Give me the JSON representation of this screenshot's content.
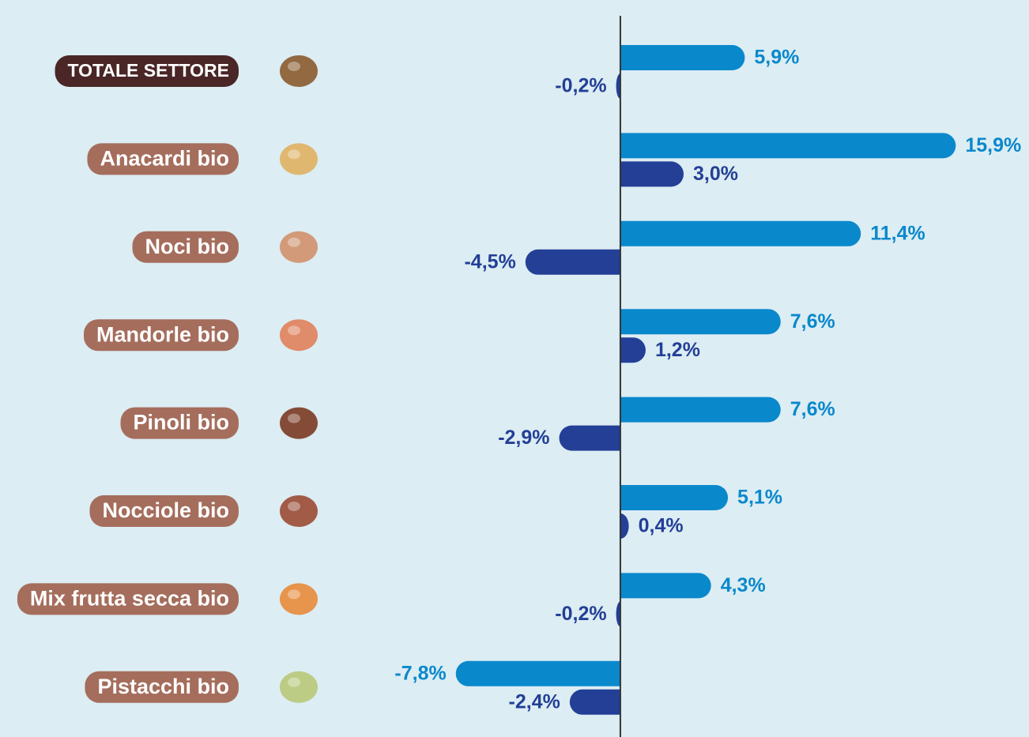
{
  "chart_data": {
    "type": "hbar",
    "categories": [
      "TOTALE SETTORE",
      "Anacardi bio",
      "Noci bio",
      "Mandorle bio",
      "Pinoli bio",
      "Nocciole bio",
      "Mix frutta secca bio",
      "Pistacchi bio"
    ],
    "series": [
      {
        "color": "#0a88cc",
        "values": [
          5.9,
          15.9,
          11.4,
          7.6,
          7.6,
          5.1,
          4.3,
          -7.8
        ],
        "value_labels": [
          "5,9%",
          "15,9%",
          "11,4%",
          "7,6%",
          "7,6%",
          "5,1%",
          "4,3%",
          "-7,8%"
        ]
      },
      {
        "color": "#233f96",
        "values": [
          -0.2,
          3.0,
          -4.5,
          1.2,
          -2.9,
          0.4,
          -0.2,
          -2.4
        ],
        "value_labels": [
          "-0,2%",
          "3,0%",
          "-4,5%",
          "1,2%",
          "-2,9%",
          "0,4%",
          "-0,2%",
          "-2,4%"
        ]
      }
    ],
    "xlim": [
      -10,
      16
    ]
  }
}
